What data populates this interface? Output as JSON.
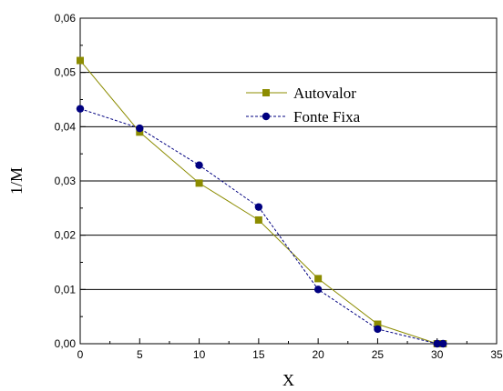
{
  "chart_data": {
    "type": "line",
    "title": "",
    "xlabel": "X",
    "ylabel": "1/M",
    "xlim": [
      0,
      35
    ],
    "ylim": [
      0,
      0.06
    ],
    "x_ticks": [
      0,
      5,
      10,
      15,
      20,
      25,
      30,
      35
    ],
    "x_tick_labels": [
      "0",
      "5",
      "10",
      "15",
      "20",
      "25",
      "30",
      "35"
    ],
    "y_ticks": [
      0,
      0.01,
      0.02,
      0.03,
      0.04,
      0.05,
      0.06
    ],
    "y_tick_labels": [
      "0,00",
      "0,01",
      "0,02",
      "0,03",
      "0,04",
      "0,05",
      "0,06"
    ],
    "grid": "horizontal",
    "legend_position": "top-right",
    "series": [
      {
        "name": "Autovalor",
        "color": "#8c8c00",
        "marker": "square",
        "line_style": "solid",
        "x": [
          0,
          5,
          10,
          15,
          20,
          25,
          30,
          30.5
        ],
        "y": [
          0.0522,
          0.039,
          0.0296,
          0.0228,
          0.012,
          0.0036,
          0.0,
          0.0
        ]
      },
      {
        "name": "Fonte Fixa",
        "color": "#000080",
        "marker": "circle",
        "line_style": "dashed",
        "x": [
          0,
          5,
          10,
          15,
          20,
          25,
          30,
          30.5
        ],
        "y": [
          0.0433,
          0.0397,
          0.0329,
          0.0252,
          0.01,
          0.0027,
          0.0,
          0.0
        ]
      }
    ]
  }
}
